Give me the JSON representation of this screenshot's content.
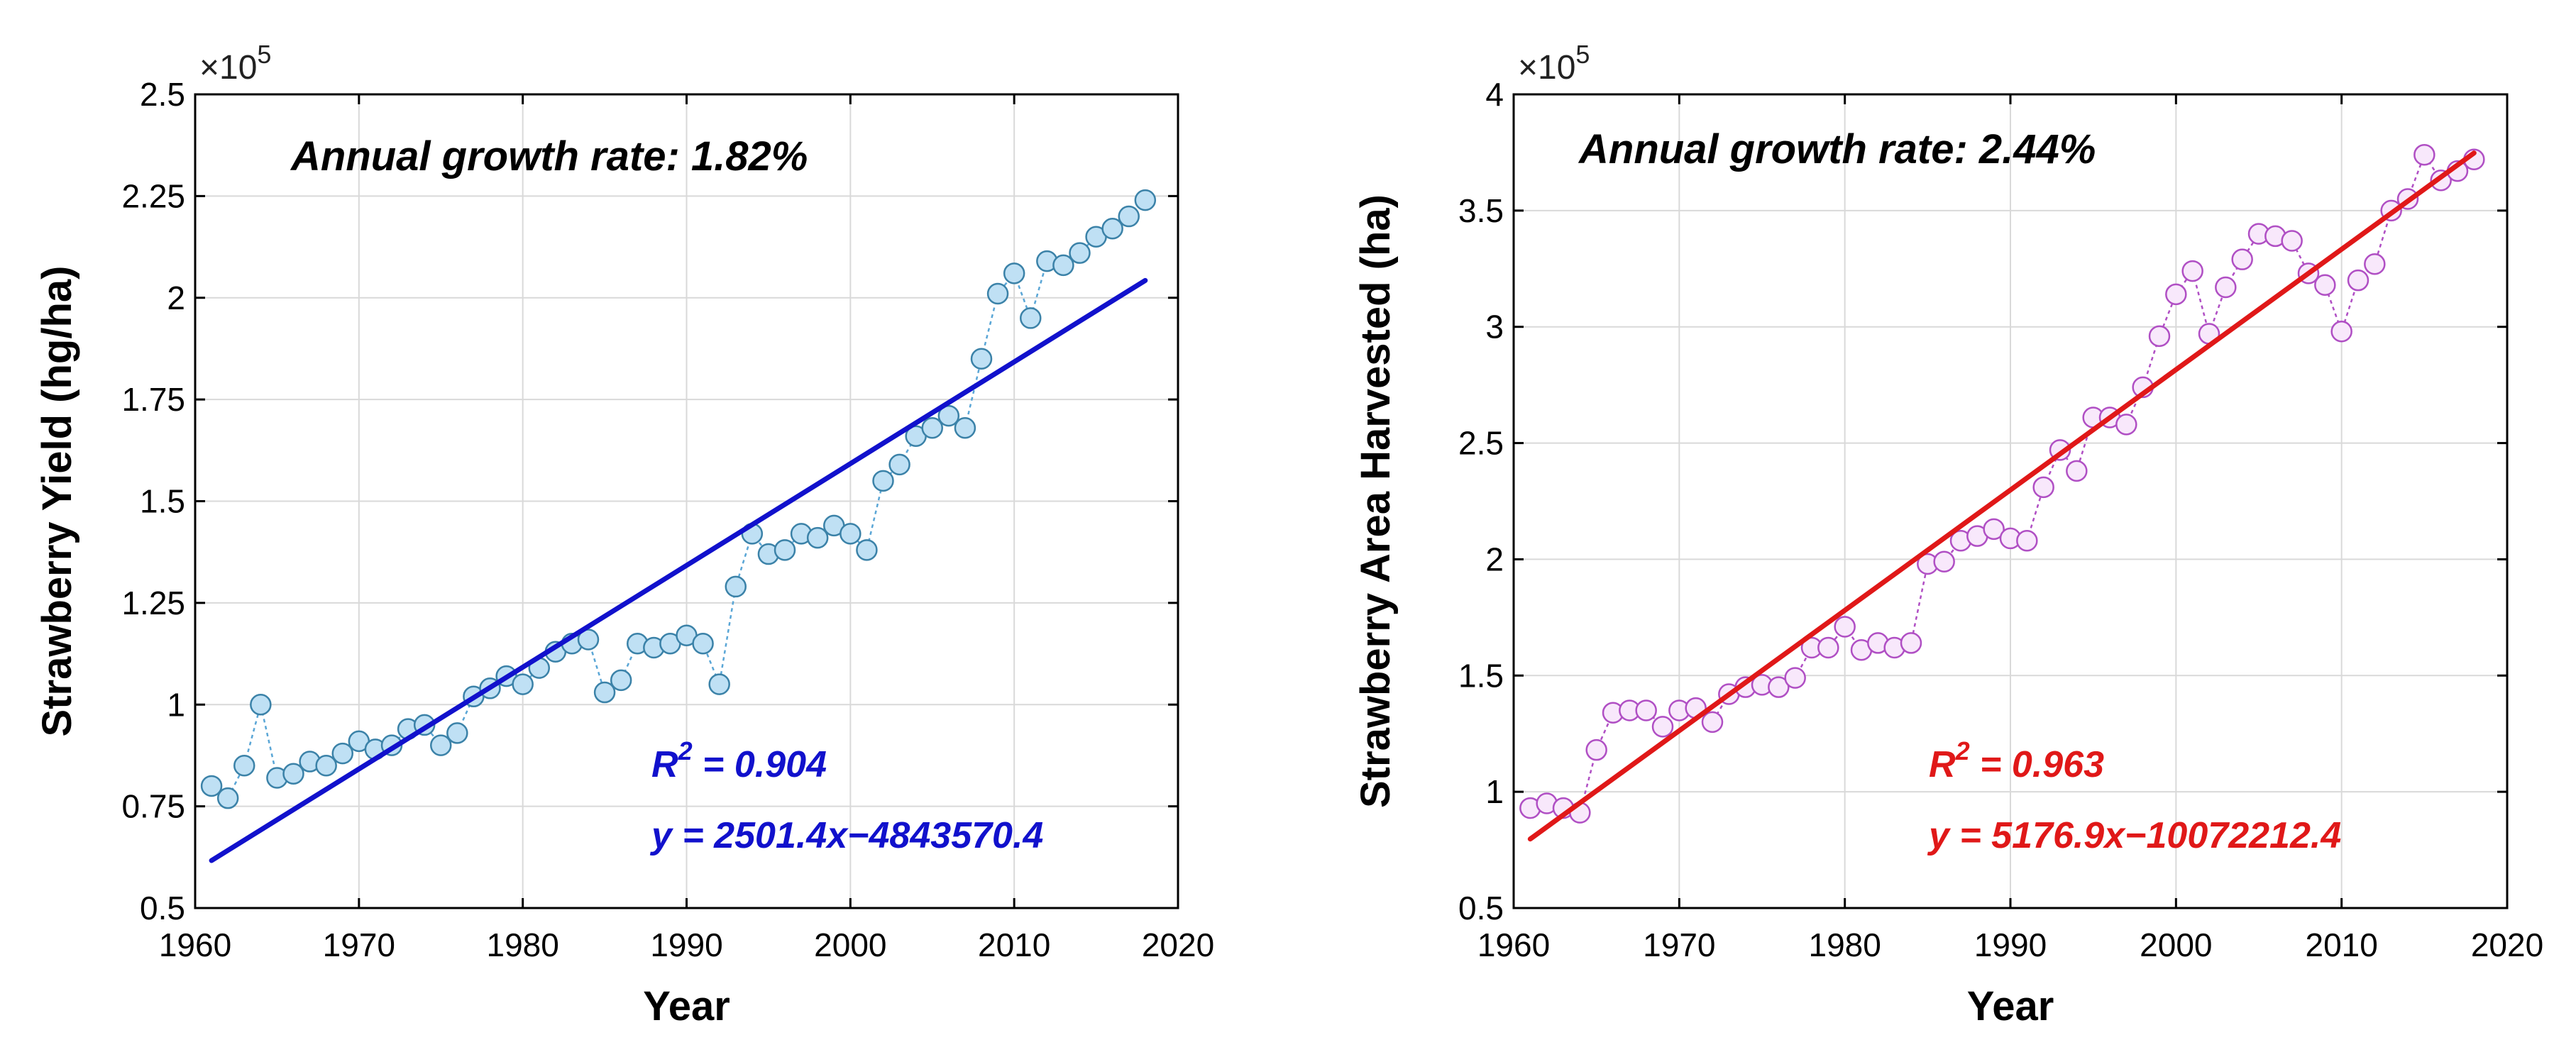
{
  "chart_data": [
    {
      "type": "scatter",
      "xlabel": "Year",
      "ylabel": "Strawberry Yield (hg/ha)",
      "multiplier_label": "×10",
      "multiplier_exponent": "5",
      "xlim": [
        1960,
        2020
      ],
      "ylim": [
        0.5,
        2.5
      ],
      "xticks": [
        1960,
        1970,
        1980,
        1990,
        2000,
        2010,
        2020
      ],
      "yticks": [
        0.5,
        0.75,
        1,
        1.25,
        1.5,
        1.75,
        2,
        2.25,
        2.5
      ],
      "ytick_labels": [
        "0.5",
        "0.75",
        "1",
        "1.25",
        "1.5",
        "1.75",
        "2",
        "2.25",
        "2.5"
      ],
      "grid": true,
      "annotation": "Annual growth rate: 1.82%",
      "r2_prefix": "R",
      "r2_exp": "2",
      "r2_value": " = 0.904",
      "equation": "y = 2501.4x−4843570.4",
      "fit": {
        "slope": 2501.4,
        "intercept": -4843570.4,
        "scale": 100000,
        "x_range": [
          1961,
          2018
        ]
      },
      "colors": {
        "marker_fill": "#bfe0f4",
        "marker_edge": "#3b82a8",
        "connector": "#5aa6d6",
        "fit_line": "#1111cc",
        "stats_text": "#1111cc"
      },
      "series": [
        {
          "name": "Strawberry Yield",
          "x": [
            1961,
            1962,
            1963,
            1964,
            1965,
            1966,
            1967,
            1968,
            1969,
            1970,
            1971,
            1972,
            1973,
            1974,
            1975,
            1976,
            1977,
            1978,
            1979,
            1980,
            1981,
            1982,
            1983,
            1984,
            1985,
            1986,
            1987,
            1988,
            1989,
            1990,
            1991,
            1992,
            1993,
            1994,
            1995,
            1996,
            1997,
            1998,
            1999,
            2000,
            2001,
            2002,
            2003,
            2004,
            2005,
            2006,
            2007,
            2008,
            2009,
            2010,
            2011,
            2012,
            2013,
            2014,
            2015,
            2016,
            2017,
            2018
          ],
          "y": [
            0.8,
            0.77,
            0.85,
            1.0,
            0.82,
            0.83,
            0.86,
            0.85,
            0.88,
            0.91,
            0.89,
            0.9,
            0.94,
            0.95,
            0.9,
            0.93,
            1.02,
            1.04,
            1.07,
            1.05,
            1.09,
            1.13,
            1.15,
            1.16,
            1.03,
            1.06,
            1.15,
            1.14,
            1.15,
            1.17,
            1.15,
            1.05,
            1.29,
            1.42,
            1.37,
            1.38,
            1.42,
            1.41,
            1.44,
            1.42,
            1.38,
            1.55,
            1.59,
            1.66,
            1.68,
            1.71,
            1.68,
            1.85,
            2.01,
            2.06,
            1.95,
            2.09,
            2.08,
            2.11,
            2.15,
            2.17,
            2.2,
            2.24
          ]
        }
      ]
    },
    {
      "type": "scatter",
      "xlabel": "Year",
      "ylabel": "Strawberry Area Harvested (ha)",
      "multiplier_label": "×10",
      "multiplier_exponent": "5",
      "xlim": [
        1960,
        2020
      ],
      "ylim": [
        0.5,
        4
      ],
      "xticks": [
        1960,
        1970,
        1980,
        1990,
        2000,
        2010,
        2020
      ],
      "yticks": [
        0.5,
        1,
        1.5,
        2,
        2.5,
        3,
        3.5,
        4
      ],
      "ytick_labels": [
        "0.5",
        "1",
        "1.5",
        "2",
        "2.5",
        "3",
        "3.5",
        "4"
      ],
      "grid": true,
      "annotation": "Annual growth rate: 2.44%",
      "r2_prefix": "R",
      "r2_exp": "2",
      "r2_value": " = 0.963",
      "equation": "y = 5176.9x−10072212.4",
      "fit": {
        "slope": 5176.9,
        "intercept": -10072212.4,
        "scale": 100000,
        "x_range": [
          1961,
          2018
        ]
      },
      "colors": {
        "marker_fill": "#f8e8fb",
        "marker_edge": "#b04fc4",
        "connector": "#b04fc4",
        "fit_line": "#e01818",
        "stats_text": "#e01818"
      },
      "series": [
        {
          "name": "Strawberry Area Harvested",
          "x": [
            1961,
            1962,
            1963,
            1964,
            1965,
            1966,
            1967,
            1968,
            1969,
            1970,
            1971,
            1972,
            1973,
            1974,
            1975,
            1976,
            1977,
            1978,
            1979,
            1980,
            1981,
            1982,
            1983,
            1984,
            1985,
            1986,
            1987,
            1988,
            1989,
            1990,
            1991,
            1992,
            1993,
            1994,
            1995,
            1996,
            1997,
            1998,
            1999,
            2000,
            2001,
            2002,
            2003,
            2004,
            2005,
            2006,
            2007,
            2008,
            2009,
            2010,
            2011,
            2012,
            2013,
            2014,
            2015,
            2016,
            2017,
            2018
          ],
          "y": [
            0.93,
            0.95,
            0.93,
            0.91,
            1.18,
            1.34,
            1.35,
            1.35,
            1.28,
            1.35,
            1.36,
            1.3,
            1.42,
            1.45,
            1.46,
            1.45,
            1.49,
            1.62,
            1.62,
            1.71,
            1.61,
            1.64,
            1.62,
            1.64,
            1.98,
            1.99,
            2.08,
            2.1,
            2.13,
            2.09,
            2.08,
            2.31,
            2.47,
            2.38,
            2.61,
            2.61,
            2.58,
            2.74,
            2.96,
            3.14,
            3.24,
            2.97,
            3.17,
            3.29,
            3.4,
            3.39,
            3.37,
            3.23,
            3.18,
            2.98,
            3.2,
            3.27,
            3.5,
            3.55,
            3.74,
            3.63,
            3.67,
            3.72
          ]
        }
      ]
    }
  ]
}
